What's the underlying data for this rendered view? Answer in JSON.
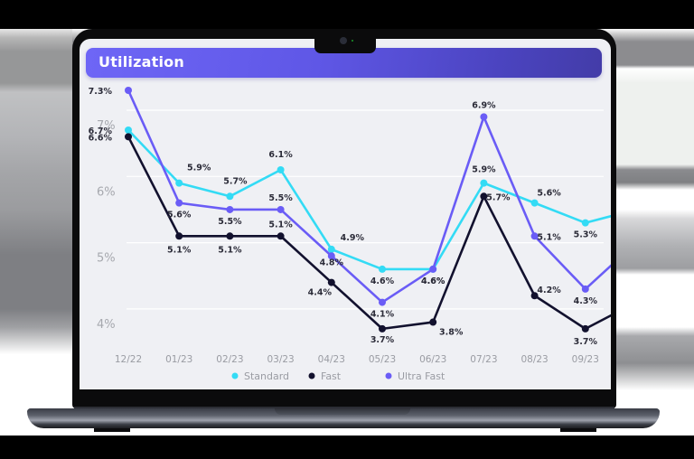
{
  "header": {
    "title": "Utilization"
  },
  "colors": {
    "standard": "#33dbf5",
    "fast": "#12112e",
    "ultra_fast": "#6a5cf6",
    "header_start": "#6e66f6",
    "header_end": "#433ca8",
    "screen_bg": "#eff0f4",
    "grid": "#ffffff",
    "axis_text": "#9a9ca3",
    "label_text": "#2b2b38"
  },
  "legend": [
    {
      "name": "Standard",
      "color": "#33dbf5"
    },
    {
      "name": "Fast",
      "color": "#12112e"
    },
    {
      "name": "Ultra Fast",
      "color": "#6a5cf6"
    }
  ],
  "chart_data": {
    "type": "line",
    "title": "Utilization",
    "xlabel": "",
    "ylabel": "",
    "categories": [
      "12/22",
      "01/23",
      "02/23",
      "03/23",
      "04/23",
      "05/23",
      "06/23",
      "07/23",
      "08/23",
      "09/23"
    ],
    "y_ticks": [
      "4%",
      "5%",
      "6%",
      "7%"
    ],
    "ylim": [
      3.5,
      7.5
    ],
    "grid": true,
    "legend_position": "bottom",
    "series": [
      {
        "name": "Standard",
        "values": [
          6.7,
          5.9,
          5.7,
          6.1,
          4.9,
          4.6,
          4.6,
          5.9,
          5.6,
          5.3
        ],
        "labels": [
          "6.7%",
          "5.9%",
          "5.7%",
          "6.1%",
          "4.9%",
          "4.6%",
          "4.6%",
          "5.9%",
          "5.6%",
          "5.3%"
        ]
      },
      {
        "name": "Fast",
        "values": [
          6.6,
          5.1,
          5.1,
          5.1,
          4.4,
          3.7,
          3.8,
          5.7,
          4.2,
          3.7
        ],
        "labels": [
          "6.6%",
          "5.1%",
          "5.1%",
          "5.1%",
          "4.4%",
          "3.7%",
          "3.8%",
          "5.7%",
          "4.2%",
          "3.7%"
        ]
      },
      {
        "name": "Ultra Fast",
        "values": [
          7.3,
          5.6,
          5.5,
          5.5,
          4.8,
          4.1,
          4.6,
          6.9,
          5.1,
          4.3
        ],
        "labels": [
          "7.3%",
          "5.6%",
          "5.5%",
          "5.5%",
          "4.8%",
          "4.1%",
          "4.6%",
          "6.9%",
          "5.1%",
          "4.3%"
        ]
      }
    ],
    "trailing_partial": {
      "Standard": 5.5,
      "Fast": 4.1,
      "Ultra Fast": 5.0
    }
  }
}
